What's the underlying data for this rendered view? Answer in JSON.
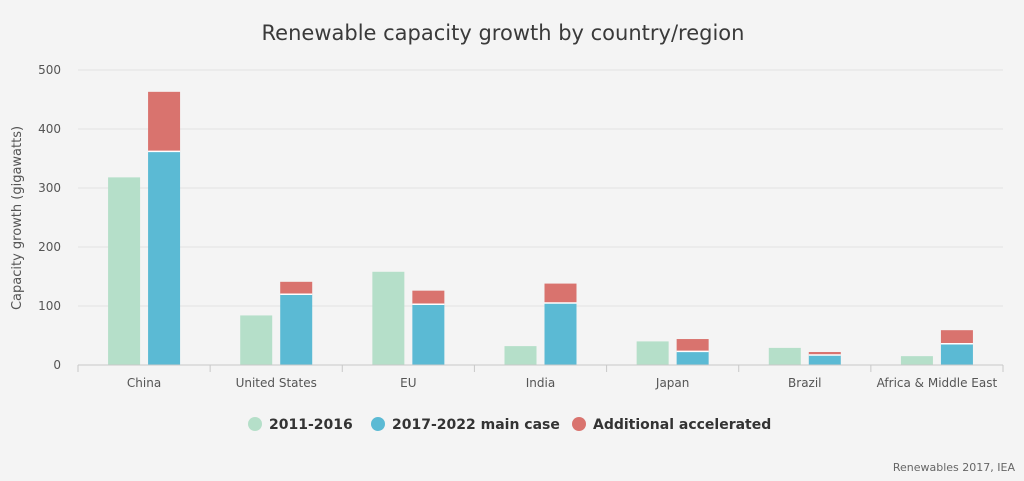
{
  "chart_data": {
    "type": "bar",
    "title": "Renewable capacity growth by country/region",
    "xlabel": "",
    "ylabel": "Capacity growth (gigawatts)",
    "ylim": [
      0,
      500
    ],
    "yticks": [
      0,
      100,
      200,
      300,
      400,
      500
    ],
    "grid": true,
    "legend_position": "bottom",
    "categories": [
      "China",
      "United States",
      "EU",
      "India",
      "Japan",
      "Brazil",
      "Africa & Middle East"
    ],
    "series": [
      {
        "name": "2011-2016",
        "color": "#b5dfc9",
        "stack": "a",
        "values": [
          318,
          84,
          158,
          32,
          40,
          29,
          15
        ]
      },
      {
        "name": "2017-2022 main case",
        "color": "#5bbad4",
        "stack": "b",
        "values": [
          362,
          120,
          103,
          105,
          23,
          17,
          36
        ]
      },
      {
        "name": "Additional accelerated",
        "color": "#d9736e",
        "stack": "b",
        "values": [
          101,
          21,
          23,
          33,
          21,
          5,
          23
        ]
      }
    ]
  },
  "source": "Renewables 2017, IEA"
}
